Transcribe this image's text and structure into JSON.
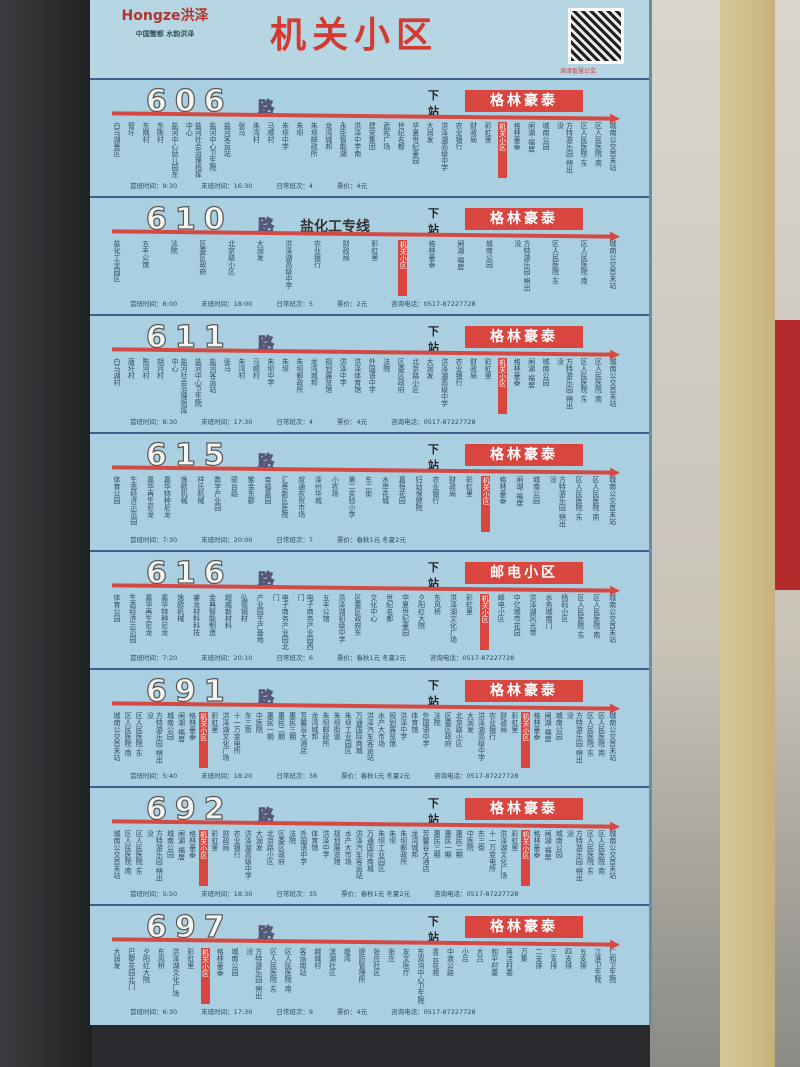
{
  "header": {
    "title": "机关小区",
    "logo_text": "Hongze洪泽",
    "logo_slogan": "中国蟹都 水韵洪泽",
    "qr_caption": "洪泽智慧公交"
  },
  "labels": {
    "lu": "路",
    "next": "下站",
    "first": "首班时间：",
    "last": "末班时间：",
    "daily": "日常班次：",
    "fare": "票价：",
    "phone": "咨询电话："
  },
  "current_stop": "机关小区",
  "routes": [
    {
      "number": "606",
      "special": "",
      "next_stop": "格林豪泰",
      "first": "9:30",
      "last": "16:30",
      "daily": "4",
      "fare": "4元",
      "phone": "",
      "stops": [
        "白马湖景区",
        "管圩",
        "东隅村",
        "东陈村",
        "盐河中心幼儿园东",
        "盐河社会治理指挥中心",
        "盐河中心卫生院",
        "盐河客运站",
        "张马",
        "朱湾村",
        "马顺村",
        "朱坝中学",
        "朱坝",
        "朱坝邮政所",
        "龙湾城邦",
        "永臣智能湖",
        "洪泽中学南",
        "建安集团",
        "武宪广场",
        "世纪名都",
        "华夏世纪豪园",
        "大润发",
        "洪泽湖高级中学",
        "农业银行",
        "财政局",
        "彩虹里",
        "机关小区",
        "格林豪泰",
        "闸湖·福居",
        "城南公园",
        "方特游乐园·朔出没",
        "区人民医院·东",
        "区人民医院·南",
        "城南公交首末站"
      ]
    },
    {
      "number": "610",
      "special": "盐化工专线",
      "next_stop": "格林豪泰",
      "first": "8:00",
      "last": "18:00",
      "daily": "5",
      "fare": "2元",
      "phone": "0517-87227728",
      "stops": [
        "盐化工业园区",
        "五丰公馆",
        "法院",
        "区委区政府",
        "北京路小区",
        "大润发",
        "洪泽湖高级中学",
        "农业银行",
        "财政局",
        "彩虹里",
        "机关小区",
        "格林豪泰",
        "闸湖·福居",
        "城南公园",
        "方特游乐园·朔出没",
        "区人民医院·东",
        "区人民医院·南",
        "城南公交首末站"
      ]
    },
    {
      "number": "611",
      "special": "",
      "next_stop": "格林豪泰",
      "first": "8:30",
      "last": "17:30",
      "daily": "4",
      "fare": "4元",
      "phone": "0517-87227728",
      "stops": [
        "白马湖村",
        "唐圩村",
        "陈河村",
        "胡河村",
        "盐河社会治理指挥中心",
        "盐河中心卫生院",
        "盐河客运站",
        "张马",
        "朱湾村",
        "马顺村",
        "朱坝中学",
        "朱坝",
        "朱坝邮政所",
        "龙湾城邦",
        "规划展览馆",
        "洪泽中学",
        "洪泽体育馆",
        "外国语中学",
        "法院",
        "区委区政府",
        "北京路小区",
        "大润发",
        "洪泽湖高级中学",
        "农业银行",
        "财政局",
        "彩虹里",
        "机关小区",
        "格林豪泰",
        "闸湖·福居",
        "城南公园",
        "方特游乐园·朔出没",
        "区人民医院·东",
        "区人民医院·南",
        "城南公交首末站"
      ]
    },
    {
      "number": "615",
      "special": "",
      "next_stop": "格林豪泰",
      "first": "7:30",
      "last": "20:00",
      "daily": "7",
      "fare": "春秋1元 冬夏2元",
      "phone": "",
      "stops": [
        "体育公园",
        "生态经济示范园",
        "嘉华再生尼龙",
        "嘉华特种尼龙",
        "逸欧机械",
        "祥氏机械",
        "数字产业园",
        "硕台路",
        "紫金东郡",
        "幸福嘉园",
        "汇景新区医院",
        "叔通农贸市场",
        "泽州华城",
        "小农场",
        "第二实验小学",
        "东二街",
        "水岸花城",
        "嘉恒花园",
        "妇幼保健院",
        "农业银行",
        "财政局",
        "彩虹里",
        "机关小区",
        "格林豪泰",
        "闸湖·福居",
        "城南公园",
        "方特游乐园·朔出没",
        "区人民医院·东",
        "区人民医院·南",
        "城南公交首末站"
      ]
    },
    {
      "number": "616",
      "special": "",
      "next_stop": "邮电小区",
      "first": "7:20",
      "last": "20:10",
      "daily": "6",
      "fare": "春秋1元 冬夏2元",
      "phone": "0517-87227728",
      "stops": [
        "体育公园",
        "生态经济示范园",
        "嘉华再生尼龙",
        "嘉华特种尼龙",
        "逸欧机械",
        "睿龙材料科技",
        "金典智能制造",
        "超威新材料",
        "弘德钢材",
        "产业园生产基地",
        "电子商务产业园北门",
        "电子商务产业园西门",
        "五丰公馆",
        "洪泽湖初级中学",
        "区委区政府东",
        "文化中心",
        "世纪名都",
        "华夏世纪豪园",
        "夕阳红大院",
        "东风桥",
        "洪泽湖文化广场",
        "彩虹里",
        "机关小区",
        "邮电小区",
        "中亿城市花园",
        "洪泽湖风光带",
        "水务城南门",
        "杨码小区",
        "区人民医院·东",
        "区人民医院·南",
        "城南公交首末站"
      ]
    },
    {
      "number": "691",
      "special": "",
      "next_stop": "格林豪泰",
      "first": "5:40",
      "last": "18:20",
      "daily": "38",
      "fare": "春秋1元 冬夏2元",
      "phone": "0517-87227728",
      "stops": [
        "城南公交首末站",
        "区人民医院·南",
        "区人民医院·东",
        "方特游乐园·朔出没",
        "城南公园",
        "闸湖·福居",
        "格林豪泰",
        "机关小区",
        "彩虹里",
        "洪泽湖文化广场",
        "十一万变电所",
        "东三街",
        "中医院",
        "惠民一期",
        "惠民二期",
        "惠民三期",
        "芳馨谷大酒店",
        "龙湾城邦",
        "朱坝邮政所",
        "朱坝街道",
        "朱坝工业园区",
        "万通国际商城",
        "洪泽汽车客运站",
        "水产大市场",
        "规划展览馆",
        "洪泽中学",
        "体育馆",
        "外国语中学",
        "法院",
        "区委区政府",
        "北京路小区",
        "大润发",
        "洪泽湖高级中学",
        "农业银行",
        "财政局",
        "彩虹里",
        "机关小区",
        "格林豪泰",
        "闸湖·福居",
        "城南公园",
        "方特游乐园·朔出没",
        "区人民医院·东",
        "区人民医院·南",
        "城南公交首末站"
      ]
    },
    {
      "number": "692",
      "special": "",
      "next_stop": "格林豪泰",
      "first": "5:50",
      "last": "18:30",
      "daily": "35",
      "fare": "春秋1元 冬夏2元",
      "phone": "0517-87227728",
      "stops": [
        "城南公交首末站",
        "区人民医院·南",
        "区人民医院·东",
        "方特游乐园·朔出没",
        "城南公园",
        "闸湖·福居",
        "格林豪泰",
        "机关小区",
        "彩虹里",
        "财政局",
        "农业银行",
        "洪泽湖高级中学",
        "大润发",
        "北京路小区",
        "区委区政府",
        "法院",
        "外国语中学",
        "体育馆",
        "洪泽中学",
        "规划展览馆",
        "水产大市场",
        "洪泽汽车客运站",
        "万通国际商城",
        "朱坝工业园区",
        "朱坝",
        "朱坝邮政所",
        "龙湾城邦",
        "芳馨谷大酒店",
        "惠民三期",
        "惠民一期",
        "惠民二期",
        "中医院",
        "东三街",
        "十一万变电所",
        "洪泽湖文化广场",
        "彩虹里",
        "机关小区",
        "格林豪泰",
        "闸湖·福居",
        "城南公园",
        "方特游乐园·朔出没",
        "区人民医院·东",
        "区人民医院·南",
        "城南公交首末站"
      ]
    },
    {
      "number": "697",
      "special": "",
      "next_stop": "格林豪泰",
      "first": "6:30",
      "last": "17:30",
      "daily": "9",
      "fare": "4元",
      "phone": "0517-87227728",
      "stops": [
        "大润发",
        "巴黎花园北门",
        "夕阳红大院",
        "东风桥",
        "洪泽湖文化广场",
        "彩虹里",
        "机关小区",
        "格林豪泰",
        "城南公园",
        "方特游乐园·朔出没",
        "区人民医院·东",
        "区人民医院·南",
        "客运南站",
        "越城村",
        "滨湖社区",
        "堤湾",
        "堤防管理所",
        "张庄社区",
        "张庄",
        "友文医疗",
        "东双沟中心卫生院",
        "青云花苑",
        "中渡公路",
        "小吕",
        "大吕",
        "和平村委",
        "蒋洼村委",
        "万集",
        "二支排",
        "三支排",
        "四支排",
        "五支排",
        "江淮卫生院",
        "仁和卫生院"
      ]
    }
  ]
}
